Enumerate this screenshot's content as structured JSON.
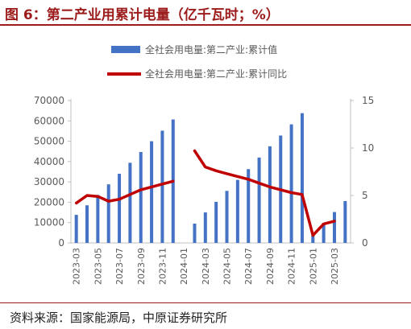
{
  "header": {
    "title": "图 6：第二产业用累计电量（亿千瓦时；%）"
  },
  "footer": {
    "source": "资料来源：国家能源局，中原证券研究所"
  },
  "colors": {
    "bar": "#4472c4",
    "line": "#c00000",
    "axis_text": "#595959",
    "title_accent": "#9c1b1b"
  },
  "chart_data": {
    "type": "bar",
    "categories": [
      "2023-03",
      "2023-04",
      "2023-05",
      "2023-06",
      "2023-07",
      "2023-08",
      "2023-09",
      "2023-10",
      "2023-11",
      "2023-12",
      "2024-01",
      "2024-02",
      "2024-03",
      "2024-04",
      "2024-05",
      "2024-06",
      "2024-07",
      "2024-08",
      "2024-09",
      "2024-10",
      "2024-11",
      "2024-12",
      "2025-01",
      "2025-02",
      "2025-03",
      "2025-04"
    ],
    "x_tick_labels": [
      "2023-03",
      "2023-05",
      "2023-07",
      "2023-09",
      "2023-11",
      "2024-01",
      "2024-03",
      "2024-05",
      "2024-07",
      "2024-09",
      "2024-11",
      "2025-01",
      "2025-03"
    ],
    "series": [
      {
        "name": "全社会用电量:第二产业:累计值",
        "type": "bar",
        "axis": "left",
        "values": [
          13800,
          18500,
          23600,
          28800,
          34000,
          39400,
          44700,
          50000,
          55200,
          60700,
          null,
          9500,
          15000,
          20200,
          25600,
          31000,
          36300,
          42000,
          47500,
          52800,
          58300,
          63800,
          5000,
          9900,
          15200,
          20600
        ]
      },
      {
        "name": "全社会用电量:第二产业:累计同比",
        "type": "line",
        "axis": "right",
        "values": [
          4.2,
          5.0,
          4.9,
          4.4,
          4.6,
          5.1,
          5.6,
          5.9,
          6.2,
          6.5,
          null,
          9.7,
          8.0,
          7.6,
          7.3,
          7.0,
          6.7,
          6.3,
          5.9,
          5.6,
          5.3,
          5.1,
          0.8,
          2.0,
          2.3,
          null
        ]
      }
    ],
    "yleft": {
      "min": 0,
      "max": 70000,
      "ticks": [
        0,
        10000,
        20000,
        30000,
        40000,
        50000,
        60000,
        70000
      ]
    },
    "yright": {
      "min": 0,
      "max": 15,
      "ticks": [
        0,
        5,
        10,
        15
      ]
    },
    "legend_position": "top",
    "grid": false
  }
}
